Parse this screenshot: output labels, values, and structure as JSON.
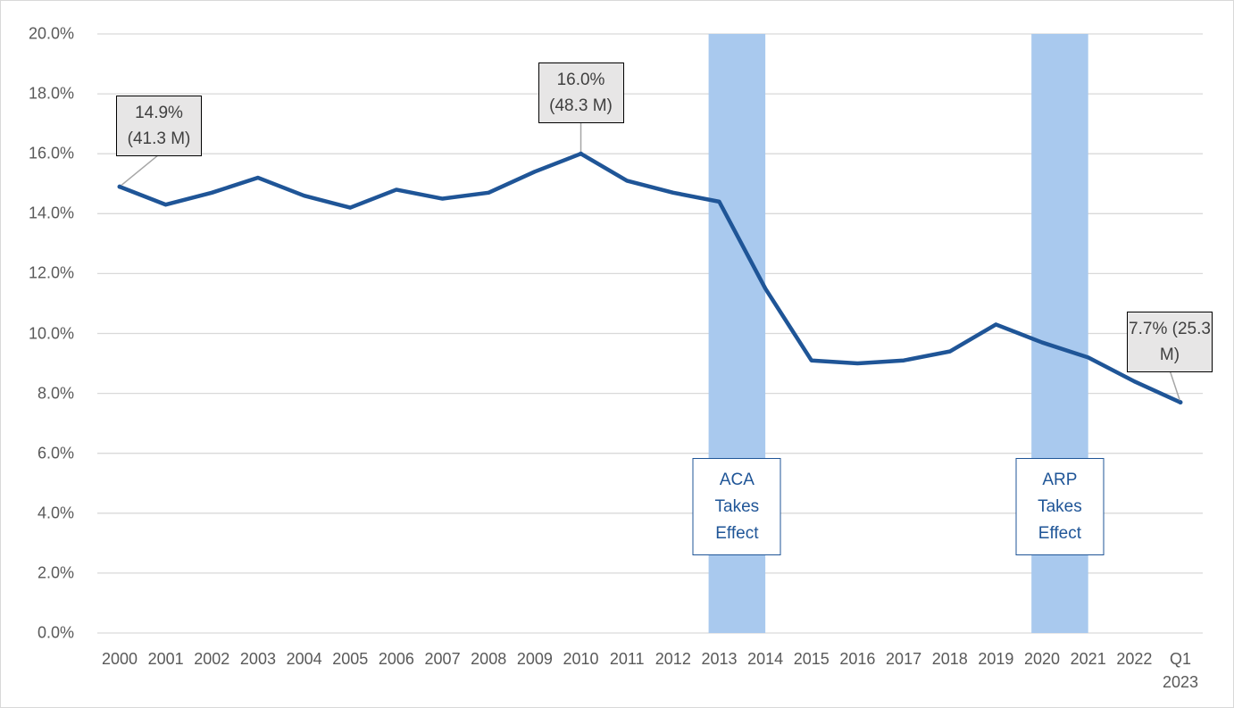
{
  "chart_data": {
    "type": "line",
    "categories": [
      "2000",
      "2001",
      "2002",
      "2003",
      "2004",
      "2005",
      "2006",
      "2007",
      "2008",
      "2009",
      "2010",
      "2011",
      "2012",
      "2013",
      "2014",
      "2015",
      "2016",
      "2017",
      "2018",
      "2019",
      "2020",
      "2021",
      "2022",
      "Q1 2023"
    ],
    "series": [
      {
        "color": "#1f5597",
        "values": [
          14.9,
          14.3,
          14.7,
          15.2,
          14.6,
          14.2,
          14.8,
          14.5,
          14.7,
          15.4,
          16.0,
          15.1,
          14.7,
          14.4,
          11.5,
          9.1,
          9.0,
          9.1,
          9.4,
          10.3,
          9.7,
          9.2,
          8.4,
          7.7
        ],
        "value_labels": [
          "14.9% (41.3 M)",
          null,
          null,
          null,
          null,
          null,
          null,
          null,
          null,
          null,
          "16.0% (48.3 M)",
          null,
          null,
          null,
          null,
          null,
          null,
          null,
          null,
          null,
          null,
          null,
          null,
          "7.7% (25.3 M)"
        ]
      }
    ],
    "ylim": [
      0,
      20
    ],
    "yticks": [
      {
        "value": 0,
        "label": "0.0%"
      },
      {
        "value": 2,
        "label": "2.0%"
      },
      {
        "value": 4,
        "label": "4.0%"
      },
      {
        "value": 6,
        "label": "6.0%"
      },
      {
        "value": 8,
        "label": "8.0%"
      },
      {
        "value": 10,
        "label": "10.0%"
      },
      {
        "value": 12,
        "label": "12.0%"
      },
      {
        "value": 14,
        "label": "14.0%"
      },
      {
        "value": 16,
        "label": "16.0%"
      },
      {
        "value": 18,
        "label": "18.0%"
      },
      {
        "value": 20,
        "label": "20.0%"
      }
    ],
    "grid": true,
    "shaded_regions": [
      {
        "label": "ACA Takes Effect",
        "start": "2013",
        "end": "2014",
        "color": "#a9c9ee"
      },
      {
        "label": "ARP Takes Effect",
        "start": "2020",
        "end": "2021",
        "color": "#a9c9ee"
      }
    ]
  }
}
